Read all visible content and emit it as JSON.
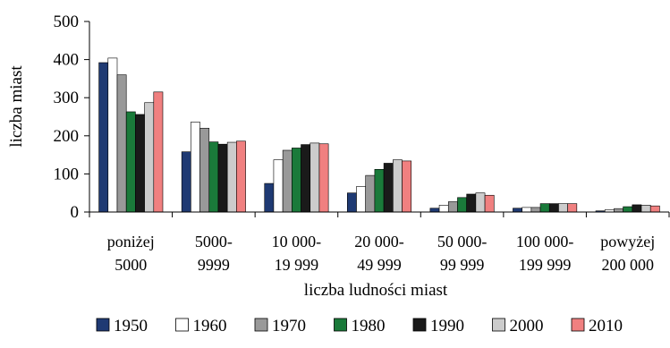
{
  "chart_data": {
    "type": "bar",
    "title": "",
    "xlabel": "liczba ludności miast",
    "ylabel": "liczba miast",
    "ylim": [
      0,
      500
    ],
    "yticks": [
      "0",
      "100",
      "200",
      "300",
      "400",
      "500"
    ],
    "grid": false,
    "legend_position": "bottom",
    "categories": [
      [
        "poniżej",
        "5000"
      ],
      [
        "5000-",
        "9999"
      ],
      [
        "10 000-",
        "19 999"
      ],
      [
        "20 000-",
        "49 999"
      ],
      [
        "50 000-",
        "99 999"
      ],
      [
        "100 000-",
        "199 999"
      ],
      [
        "powyżej",
        "200 000"
      ]
    ],
    "series": [
      {
        "name": "1950",
        "color": "#1f3a73",
        "values": [
          392,
          158,
          75,
          50,
          10,
          10,
          3
        ]
      },
      {
        "name": "1960",
        "color": "#ffffff",
        "values": [
          404,
          236,
          137,
          67,
          18,
          12,
          6
        ]
      },
      {
        "name": "1970",
        "color": "#999999",
        "values": [
          360,
          220,
          162,
          96,
          27,
          12,
          9
        ]
      },
      {
        "name": "1980",
        "color": "#1a7a3a",
        "values": [
          263,
          184,
          168,
          112,
          38,
          22,
          14
        ]
      },
      {
        "name": "1990",
        "color": "#1a1a1a",
        "values": [
          256,
          178,
          177,
          128,
          47,
          22,
          19
        ]
      },
      {
        "name": "2000",
        "color": "#cccccc",
        "values": [
          287,
          183,
          181,
          137,
          50,
          22,
          18
        ]
      },
      {
        "name": "2010",
        "color": "#f08080",
        "values": [
          315,
          186,
          179,
          134,
          44,
          22,
          16
        ]
      }
    ]
  }
}
